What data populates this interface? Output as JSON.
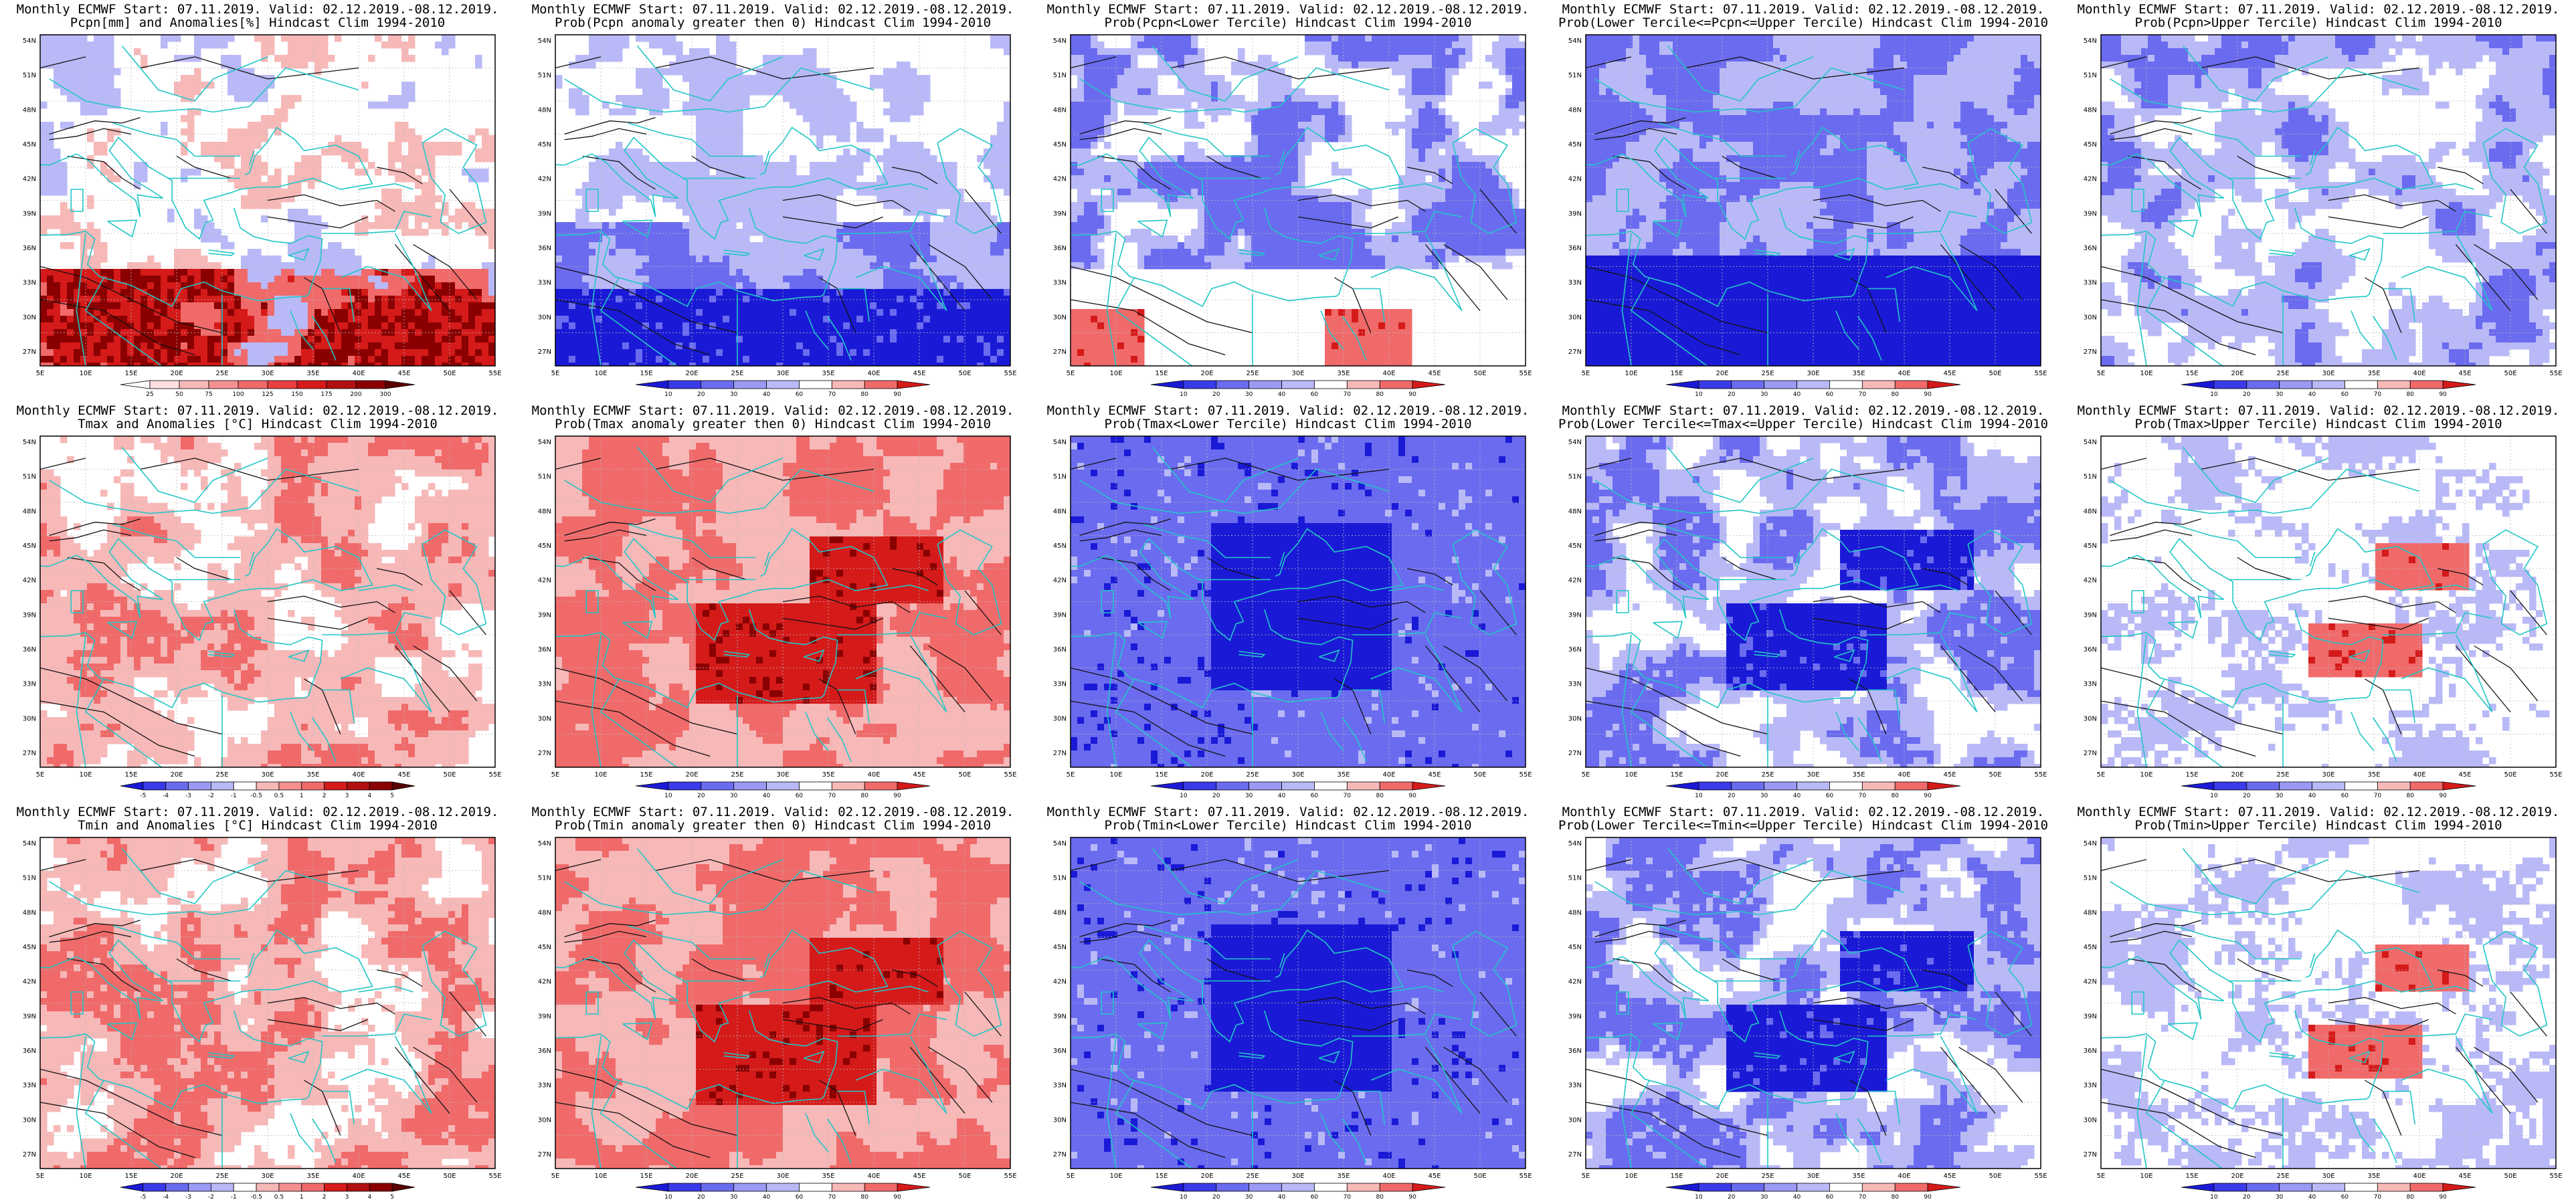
{
  "colors": {
    "coast": "#22c6c6",
    "contour": "#111111",
    "deep_blue": "#1a1ad6",
    "mid_blue": "#6b6bf0",
    "light_blue": "#b9b9f7",
    "pale": "#ffffff",
    "light_red": "#f7b8b8",
    "mid_red": "#f06a6a",
    "deep_red": "#d51a1a",
    "dark_red": "#8a0000"
  },
  "axes": {
    "lon_labels": [
      "5E",
      "10E",
      "15E",
      "20E",
      "25E",
      "30E",
      "35E",
      "40E",
      "45E",
      "50E",
      "55E"
    ],
    "lat_labels": [
      "54N",
      "51N",
      "48N",
      "45N",
      "42N",
      "39N",
      "36N",
      "33N",
      "30N",
      "27N"
    ]
  },
  "panels": [
    {
      "title_line1": "Monthly ECMWF Start: 07.11.2019. Valid: 02.12.2019.-08.12.2019.",
      "title_line2": "Pcpn[mm] and Anomalies[%] Hindcast Clim 1994-2010",
      "colorbar_labels": [
        "25",
        "50",
        "75",
        "100",
        "125",
        "150",
        "175",
        "200",
        "300"
      ],
      "field": "pcpn_anom"
    },
    {
      "title_line1": "Monthly ECMWF Start: 07.11.2019. Valid: 02.12.2019.-08.12.2019.",
      "title_line2": "Prob(Pcpn anomaly greater then 0) Hindcast Clim 1994-2010",
      "colorbar_labels": [
        "10",
        "20",
        "30",
        "40",
        "60",
        "70",
        "80",
        "90"
      ],
      "field": "prob_blue_south"
    },
    {
      "title_line1": "Monthly ECMWF Start: 07.11.2019. Valid: 02.12.2019.-08.12.2019.",
      "title_line2": "Prob(Pcpn<Lower Tercile) Hindcast Clim 1994-2010",
      "colorbar_labels": [
        "10",
        "20",
        "30",
        "40",
        "60",
        "70",
        "80",
        "90"
      ],
      "field": "prob_red_south"
    },
    {
      "title_line1": "Monthly ECMWF Start: 07.11.2019. Valid: 02.12.2019.-08.12.2019.",
      "title_line2": "Prob(Lower Tercile<=Pcpn<=Upper Tercile) Hindcast Clim 1994-2010",
      "colorbar_labels": [
        "10",
        "20",
        "30",
        "40",
        "60",
        "70",
        "80",
        "90"
      ],
      "field": "prob_deep_blue_south"
    },
    {
      "title_line1": "Monthly ECMWF Start: 07.11.2019. Valid: 02.12.2019.-08.12.2019.",
      "title_line2": "Prob(Pcpn>Upper Tercile) Hindcast Clim 1994-2010",
      "colorbar_labels": [
        "10",
        "20",
        "30",
        "40",
        "60",
        "70",
        "80",
        "90"
      ],
      "field": "prob_light_blue"
    },
    {
      "title_line1": "Monthly ECMWF Start: 07.11.2019. Valid: 02.12.2019.-08.12.2019.",
      "title_line2": "Tmax and Anomalies [°C] Hindcast Clim 1994-2010",
      "colorbar_labels": [
        "-5",
        "-4",
        "-3",
        "-2",
        "-1",
        "-0.5",
        "0.5",
        "1",
        "2",
        "3",
        "4",
        "5"
      ],
      "field": "temp_anom_light"
    },
    {
      "title_line1": "Monthly ECMWF Start: 07.11.2019. Valid: 02.12.2019.-08.12.2019.",
      "title_line2": "Prob(Tmax anomaly greater then 0) Hindcast Clim 1994-2010",
      "colorbar_labels": [
        "10",
        "20",
        "30",
        "40",
        "60",
        "70",
        "80",
        "90"
      ],
      "field": "prob_red_strong"
    },
    {
      "title_line1": "Monthly ECMWF Start: 07.11.2019. Valid: 02.12.2019.-08.12.2019.",
      "title_line2": "Prob(Tmax<Lower Tercile) Hindcast Clim 1994-2010",
      "colorbar_labels": [
        "10",
        "20",
        "30",
        "40",
        "60",
        "70",
        "80",
        "90"
      ],
      "field": "prob_deep_blue"
    },
    {
      "title_line1": "Monthly ECMWF Start: 07.11.2019. Valid: 02.12.2019.-08.12.2019.",
      "title_line2": "Prob(Lower Tercile<=Tmax<=Upper Tercile) Hindcast Clim 1994-2010",
      "colorbar_labels": [
        "10",
        "20",
        "30",
        "40",
        "60",
        "70",
        "80",
        "90"
      ],
      "field": "prob_blue_center"
    },
    {
      "title_line1": "Monthly ECMWF Start: 07.11.2019. Valid: 02.12.2019.-08.12.2019.",
      "title_line2": "Prob(Tmax>Upper Tercile) Hindcast Clim 1994-2010",
      "colorbar_labels": [
        "10",
        "20",
        "30",
        "40",
        "60",
        "70",
        "80",
        "90"
      ],
      "field": "prob_red_spots"
    },
    {
      "title_line1": "Monthly ECMWF Start: 07.11.2019. Valid: 02.12.2019.-08.12.2019.",
      "title_line2": "Tmin and Anomalies [°C] Hindcast Clim 1994-2010",
      "colorbar_labels": [
        "-5",
        "-4",
        "-3",
        "-2",
        "-1",
        "-0.5",
        "0.5",
        "1",
        "2",
        "3",
        "4",
        "5"
      ],
      "field": "temp_anom_light"
    },
    {
      "title_line1": "Monthly ECMWF Start: 07.11.2019. Valid: 02.12.2019.-08.12.2019.",
      "title_line2": "Prob(Tmin anomaly greater then 0) Hindcast Clim 1994-2010",
      "colorbar_labels": [
        "10",
        "20",
        "30",
        "40",
        "60",
        "70",
        "80",
        "90"
      ],
      "field": "prob_red_strong"
    },
    {
      "title_line1": "Monthly ECMWF Start: 07.11.2019. Valid: 02.12.2019.-08.12.2019.",
      "title_line2": "Prob(Tmin<Lower Tercile) Hindcast Clim 1994-2010",
      "colorbar_labels": [
        "10",
        "20",
        "30",
        "40",
        "60",
        "70",
        "80",
        "90"
      ],
      "field": "prob_deep_blue"
    },
    {
      "title_line1": "Monthly ECMWF Start: 07.11.2019. Valid: 02.12.2019.-08.12.2019.",
      "title_line2": "Prob(Lower Tercile<=Tmin<=Upper Tercile) Hindcast Clim 1994-2010",
      "colorbar_labels": [
        "10",
        "20",
        "30",
        "40",
        "60",
        "70",
        "80",
        "90"
      ],
      "field": "prob_blue_center"
    },
    {
      "title_line1": "Monthly ECMWF Start: 07.11.2019. Valid: 02.12.2019.-08.12.2019.",
      "title_line2": "Prob(Tmin>Upper Tercile) Hindcast Clim 1994-2010",
      "colorbar_labels": [
        "10",
        "20",
        "30",
        "40",
        "60",
        "70",
        "80",
        "90"
      ],
      "field": "prob_red_spots"
    }
  ]
}
